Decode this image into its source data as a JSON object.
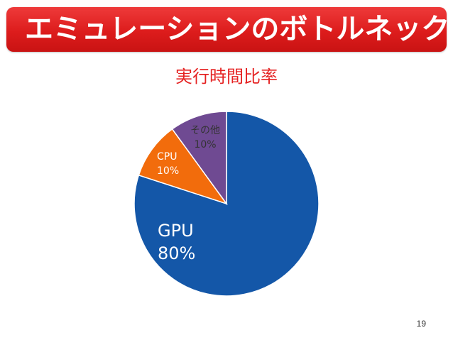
{
  "slide": {
    "title": "エミュレーションのボトルネック",
    "page_number": "19"
  },
  "colors": {
    "banner": "#dd1c1c",
    "chart_title": "#e52222",
    "gpu": "#1457a8",
    "cpu": "#f26c0c",
    "other": "#6f4a92"
  },
  "chart_data": {
    "type": "pie",
    "title": "実行時間比率",
    "slices": [
      {
        "label": "GPU",
        "value": 80,
        "value_label": "80%",
        "color": "#1457a8"
      },
      {
        "label": "CPU",
        "value": 10,
        "value_label": "10%",
        "color": "#f26c0c"
      },
      {
        "label": "その他",
        "value": 10,
        "value_label": "10%",
        "color": "#6f4a92"
      }
    ],
    "start": "12 o'clock",
    "direction": "clockwise",
    "legend": "none"
  }
}
